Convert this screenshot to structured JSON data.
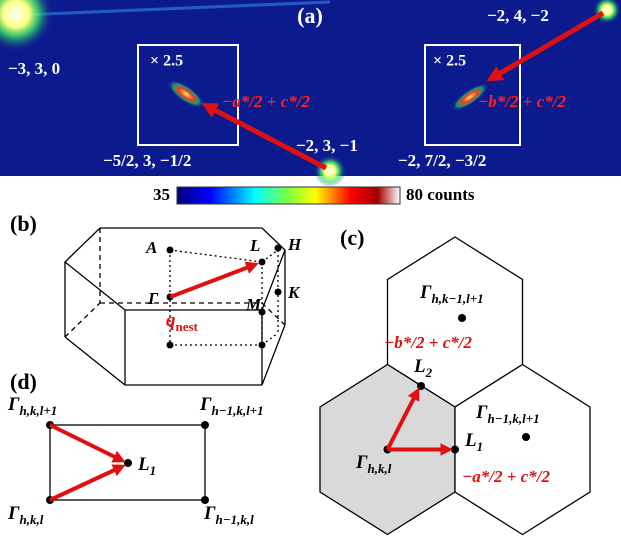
{
  "panel_a": {
    "label": "(a)",
    "reflections": [
      "−3, 3, 0",
      "−2, 3, −1",
      "−2, 4, −2"
    ],
    "insets": [
      {
        "zoom": "× 2.5",
        "position": "−5/2, 3, −1/2",
        "vector": "−a*/2 + c*/2"
      },
      {
        "zoom": "× 2.5",
        "position": "−2, 7/2, −3/2",
        "vector": "−b*/2 + c*/2"
      }
    ],
    "colorbar": {
      "low": "35",
      "high": "80 counts"
    }
  },
  "panel_b": {
    "label": "(b)",
    "points": [
      "A",
      "L",
      "H",
      "K",
      "M",
      "Γ"
    ],
    "vector": {
      "symbol": "q",
      "sub": "nest"
    }
  },
  "panel_c": {
    "label": "(c)",
    "points": [
      {
        "symbol": "Γ",
        "sub": "h,k−1,l+1"
      },
      {
        "symbol": "L",
        "sub": "2"
      },
      {
        "symbol": "L",
        "sub": "1"
      },
      {
        "symbol": "Γ",
        "sub": "h,k,l"
      },
      {
        "symbol": "Γ",
        "sub": "h−1,k,l+1"
      }
    ],
    "vectors": [
      "−b*/2 + c*/2",
      "−a*/2 + c*/2"
    ]
  },
  "panel_d": {
    "label": "(d)",
    "points": [
      {
        "symbol": "Γ",
        "sub": "h,k,l+1"
      },
      {
        "symbol": "Γ",
        "sub": "h−1,k,l+1"
      },
      {
        "symbol": "L",
        "sub": "1"
      },
      {
        "symbol": "Γ",
        "sub": "h,k,l"
      },
      {
        "symbol": "Γ",
        "sub": "h−1,k,l"
      }
    ]
  }
}
